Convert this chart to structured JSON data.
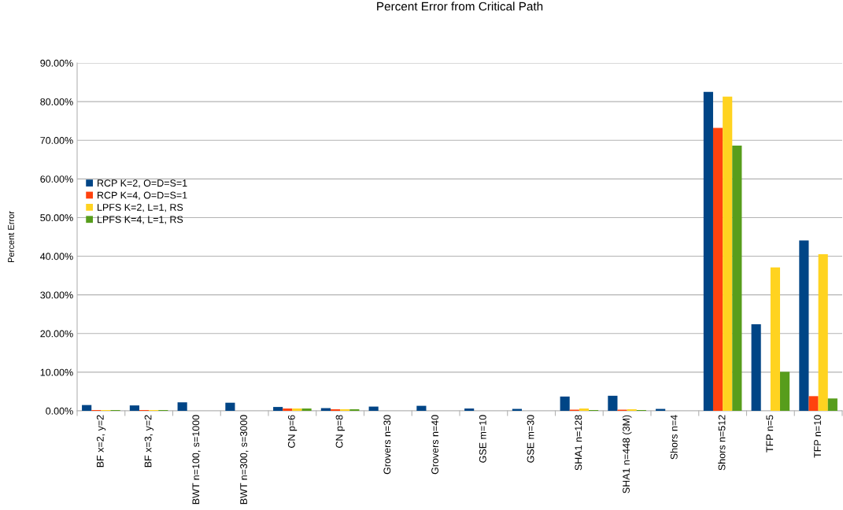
{
  "chart_data": {
    "type": "bar",
    "title": "Percent Error from Critical Path",
    "ylabel": "Percent Error",
    "categories": [
      "BF x=2, y=2",
      "BF x=3, y=2",
      "BWT n=100, s=1000",
      "BWT n=300, s=3000",
      "CN p=6",
      "CN p=8",
      "Grovers n=30",
      "Grovers n=40",
      "GSE m=10",
      "GSE m=30",
      "SHA1 n=128",
      "SHA1 n=448 (3M)",
      "Shors n=4",
      "Shors n=512",
      "TFP n=5",
      "TFP n=10"
    ],
    "series": [
      {
        "name": "RCP K=2, O=D=S=1",
        "color": "#004586",
        "values": [
          1.5,
          1.4,
          2.2,
          2.1,
          1.0,
          0.7,
          1.1,
          1.3,
          0.6,
          0.5,
          3.7,
          3.9,
          0.5,
          82.5,
          22.4,
          44.1
        ]
      },
      {
        "name": "RCP K=4, O=D=S=1",
        "color": "#ff420e",
        "values": [
          0.2,
          0.2,
          0,
          0,
          0.6,
          0.4,
          0,
          0,
          0,
          0,
          0.3,
          0.3,
          0,
          73.2,
          0,
          3.8
        ]
      },
      {
        "name": "LPFS K=2, L=1, RS",
        "color": "#ffd320",
        "values": [
          0.2,
          0.2,
          0,
          0,
          0.6,
          0.4,
          0,
          0,
          0,
          0,
          0.6,
          0.4,
          0,
          81.3,
          37.1,
          40.5
        ]
      },
      {
        "name": "LPFS K=4, L=1, RS",
        "color": "#579d1c",
        "values": [
          0.2,
          0.2,
          0,
          0,
          0.6,
          0.4,
          0,
          0,
          0,
          0,
          0.2,
          0.2,
          0,
          68.6,
          10.1,
          3.2
        ]
      }
    ],
    "ylim": [
      0,
      90
    ],
    "yticks": [
      {
        "value": 0,
        "label": "0.00%"
      },
      {
        "value": 10,
        "label": "10.00%"
      },
      {
        "value": 20,
        "label": "20.00%"
      },
      {
        "value": 30,
        "label": "30.00%"
      },
      {
        "value": 40,
        "label": "40.00%"
      },
      {
        "value": 50,
        "label": "50.00%"
      },
      {
        "value": 60,
        "label": "60.00%"
      },
      {
        "value": 70,
        "label": "70.00%"
      },
      {
        "value": 80,
        "label": "80.00%"
      },
      {
        "value": 90,
        "label": "90.00%"
      }
    ],
    "grid": "y",
    "legend": "left"
  }
}
